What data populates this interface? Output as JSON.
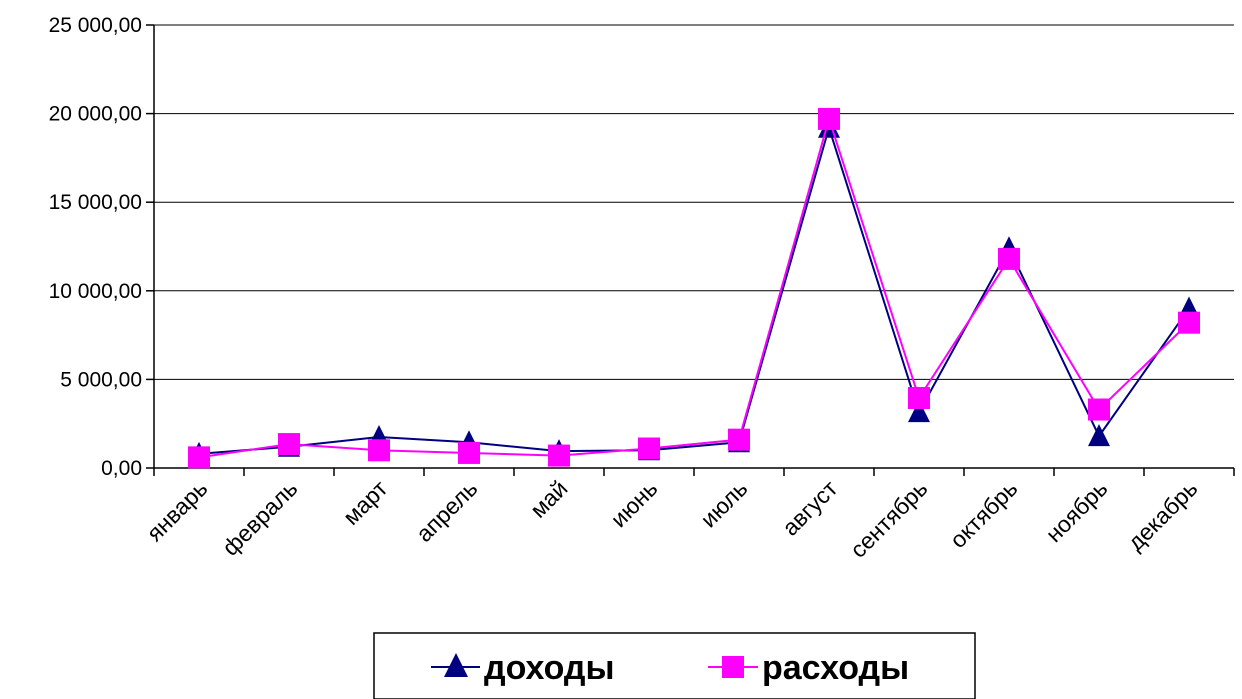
{
  "chart_data": {
    "type": "line",
    "title": "",
    "xlabel": "",
    "ylabel": "",
    "categories": [
      "январь",
      "февраль",
      "март",
      "апрель",
      "май",
      "июнь",
      "июль",
      "август",
      "сентябрь",
      "октябрь",
      "ноябрь",
      "декабрь"
    ],
    "ylim": [
      0,
      25000
    ],
    "y_ticks": [
      0,
      5000,
      10000,
      15000,
      20000,
      25000
    ],
    "y_tick_labels": [
      "0,00",
      "5 000,00",
      "10 000,00",
      "15 000,00",
      "20 000,00",
      "25 000,00"
    ],
    "grid": true,
    "legend_position": "bottom",
    "series": [
      {
        "name": "доходы",
        "marker": "triangle",
        "color": "#000080",
        "values": [
          800,
          1200,
          1750,
          1450,
          950,
          1000,
          1450,
          19200,
          3150,
          12400,
          1800,
          9000
        ]
      },
      {
        "name": "расходы",
        "marker": "square",
        "color": "#ff00ff",
        "values": [
          600,
          1350,
          1000,
          850,
          700,
          1100,
          1600,
          19700,
          3950,
          11800,
          3300,
          8200
        ]
      }
    ]
  }
}
